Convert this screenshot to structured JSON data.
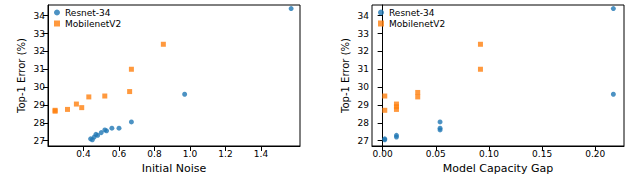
{
  "chart_data": [
    {
      "type": "scatter",
      "x_label": "Initial Noise",
      "y_label": "Top-1 Error (%)",
      "xlim": [
        0.2,
        1.62
      ],
      "xticks": [
        0.4,
        0.6,
        0.8,
        {
          "value": 1,
          "label": "1.0"
        },
        1.2,
        1.4
      ],
      "ylim": [
        26.7,
        34.6
      ],
      "yticks": [
        27,
        28,
        29,
        30,
        31,
        32,
        33,
        34
      ],
      "grid": false,
      "legend": "upper left",
      "series": [
        {
          "name": "Resnet-34",
          "color": "#1f77b4",
          "marker": "circle",
          "x": [
            0.44,
            0.45,
            0.46,
            0.47,
            0.48,
            0.5,
            0.52,
            0.53,
            0.56,
            0.6,
            0.67,
            0.97,
            1.57
          ],
          "values": [
            27.1,
            27.05,
            27.2,
            27.35,
            27.3,
            27.45,
            27.6,
            27.55,
            27.7,
            27.7,
            28.05,
            29.6,
            34.4
          ]
        },
        {
          "name": "MobilenetV2",
          "color": "#ff7f0e",
          "marker": "square",
          "x": [
            0.24,
            0.24,
            0.31,
            0.36,
            0.39,
            0.43,
            0.52,
            0.66,
            0.67,
            0.85
          ],
          "values": [
            28.7,
            28.65,
            28.75,
            29.05,
            28.85,
            29.45,
            29.5,
            29.75,
            31.0,
            32.4
          ]
        }
      ]
    },
    {
      "type": "scatter",
      "x_label": "Model Capacity Gap",
      "y_label": "Top-1 Error (%)",
      "xlim": [
        -0.01,
        0.227
      ],
      "xticks": [
        {
          "value": 0,
          "label": "0.00"
        },
        0.05,
        {
          "value": 0.1,
          "label": "0.10"
        },
        0.15,
        {
          "value": 0.2,
          "label": "0.20"
        }
      ],
      "ylim": [
        26.7,
        34.6
      ],
      "yticks": [
        27,
        28,
        29,
        30,
        31,
        32,
        33,
        34
      ],
      "grid": false,
      "legend": "upper left",
      "series": [
        {
          "name": "Resnet-34",
          "color": "#1f77b4",
          "marker": "circle",
          "x": [
            0.002,
            0.002,
            0.013,
            0.013,
            0.054,
            0.054,
            0.054,
            0.217,
            0.217
          ],
          "values": [
            27.05,
            27.1,
            27.3,
            27.2,
            27.6,
            27.7,
            28.05,
            29.6,
            34.4
          ]
        },
        {
          "name": "MobilenetV2",
          "color": "#ff7f0e",
          "marker": "square",
          "x": [
            0.002,
            0.002,
            0.013,
            0.013,
            0.013,
            0.033,
            0.033,
            0.092,
            0.092
          ],
          "values": [
            29.5,
            28.7,
            28.9,
            29.05,
            28.75,
            29.7,
            29.45,
            32.4,
            31.0
          ]
        }
      ]
    }
  ]
}
